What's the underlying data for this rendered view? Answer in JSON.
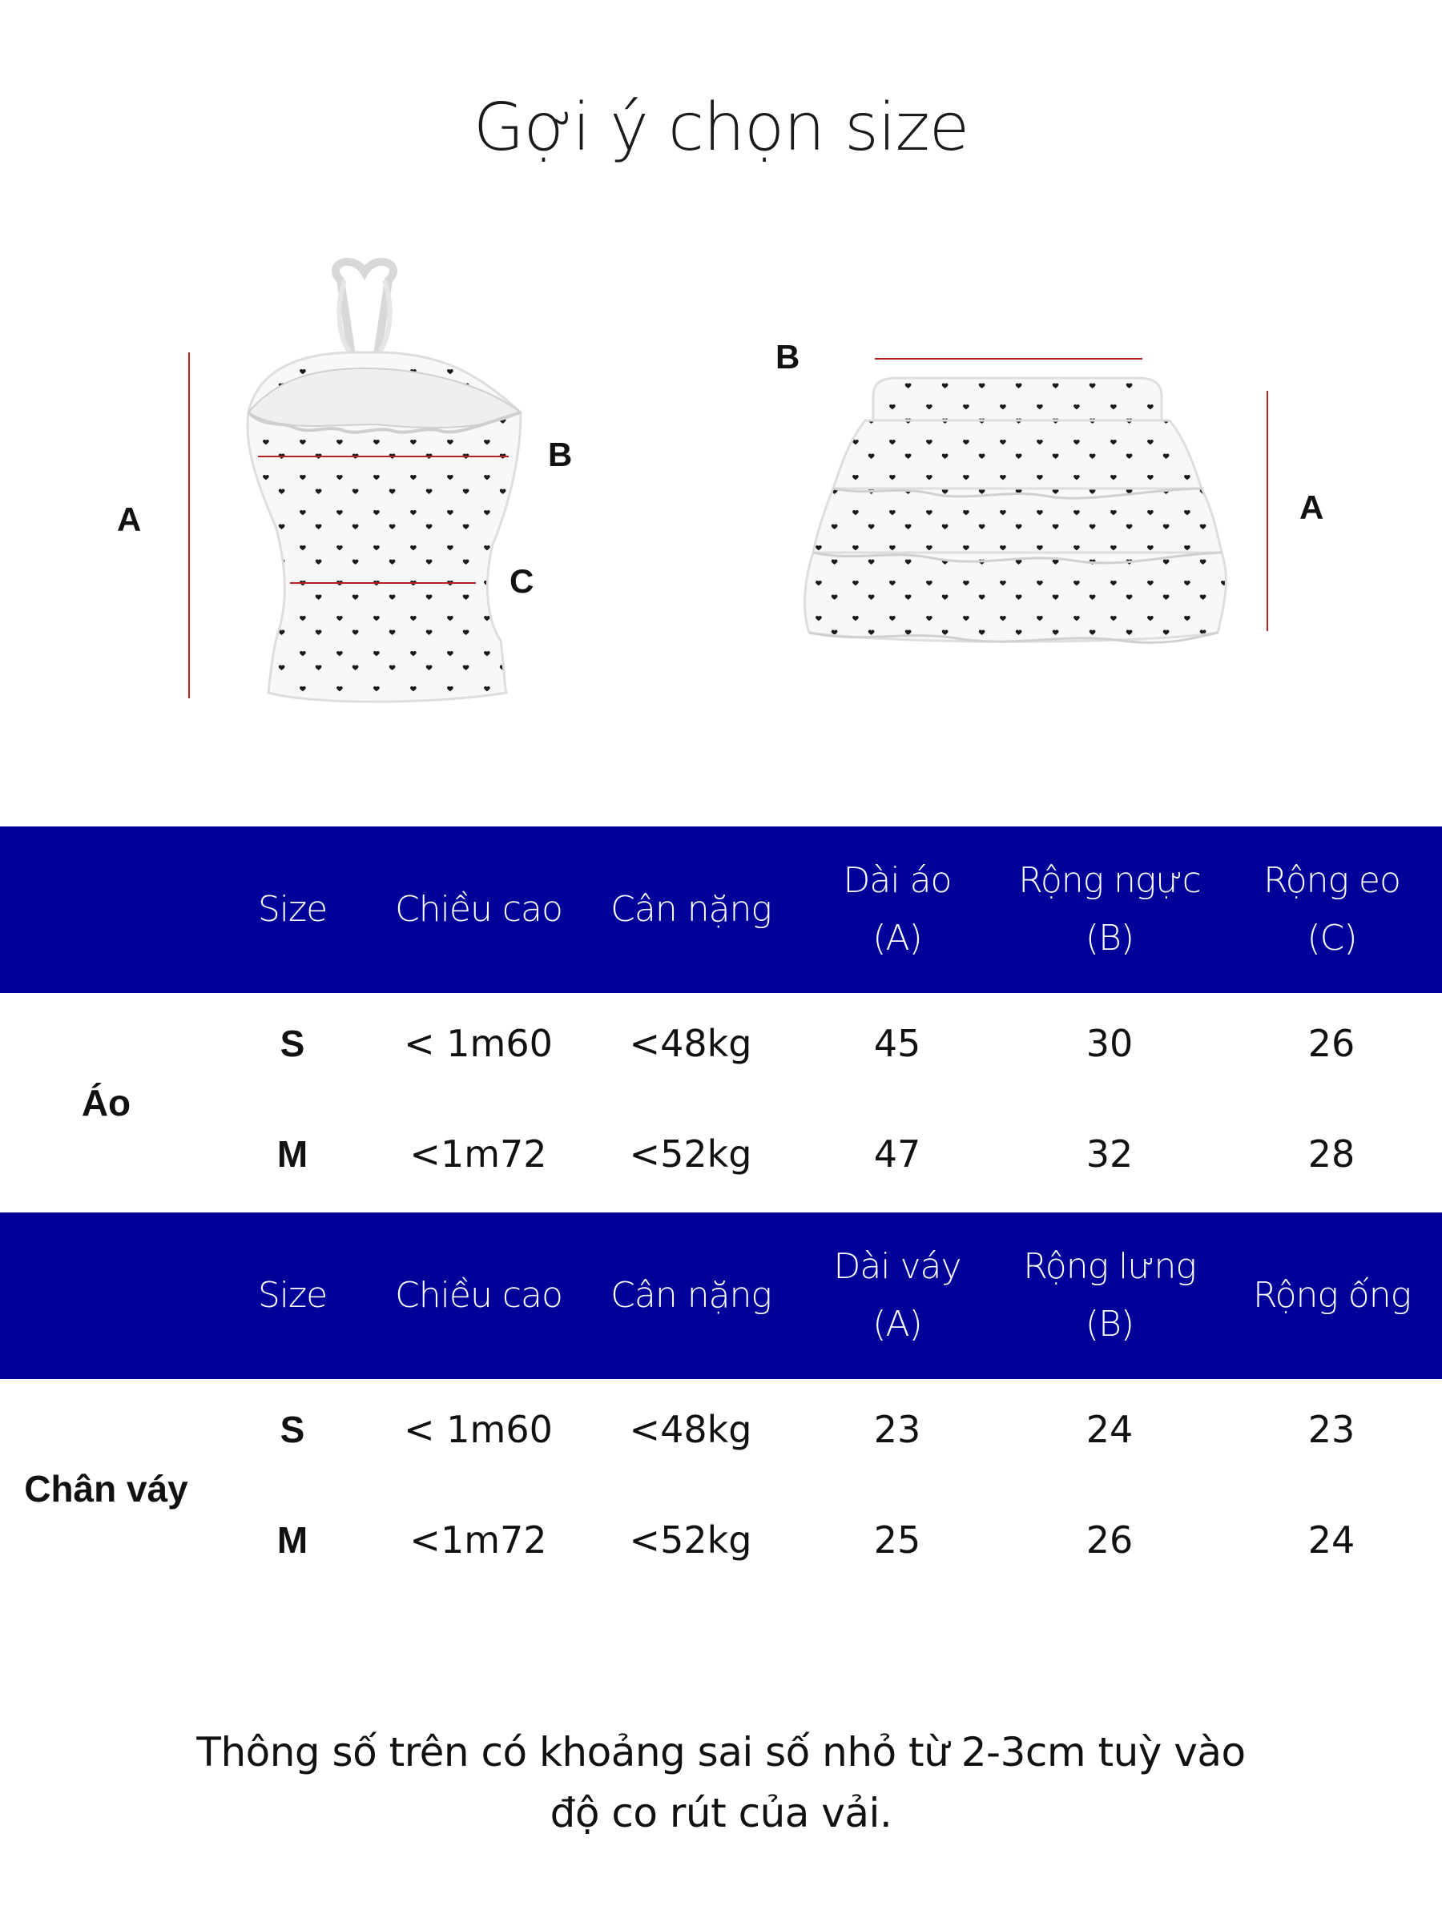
{
  "title": "Gợi ý chọn size",
  "diagram": {
    "top_labels": {
      "a": "A",
      "b": "B",
      "c": "C"
    },
    "skirt_labels": {
      "b": "B",
      "a": "A"
    },
    "colors": {
      "measure_line": "#b22222",
      "heart": "#1a1a1a",
      "fabric": "#f7f7f7"
    }
  },
  "top_table": {
    "group_label": "Áo",
    "headers": [
      {
        "line1": "Size",
        "line2": ""
      },
      {
        "line1": "Chiều cao",
        "line2": ""
      },
      {
        "line1": "Cân nặng",
        "line2": ""
      },
      {
        "line1": "Dài áo",
        "line2": "(A)"
      },
      {
        "line1": "Rộng ngực",
        "line2": "(B)"
      },
      {
        "line1": "Rộng eo",
        "line2": "(C)"
      }
    ],
    "rows": [
      {
        "size": "S",
        "height": "< 1m60",
        "weight": "<48kg",
        "a": "45",
        "b": "30",
        "c": "26"
      },
      {
        "size": "M",
        "height": "<1m72",
        "weight": "<52kg",
        "a": "47",
        "b": "32",
        "c": "28"
      }
    ]
  },
  "skirt_table": {
    "group_label": "Chân váy",
    "headers": [
      {
        "line1": "Size",
        "line2": ""
      },
      {
        "line1": "Chiều cao",
        "line2": ""
      },
      {
        "line1": "Cân nặng",
        "line2": ""
      },
      {
        "line1": "Dài váy",
        "line2": "(A)"
      },
      {
        "line1": "Rộng lưng",
        "line2": "(B)"
      },
      {
        "line1": "Rộng ống",
        "line2": ""
      }
    ],
    "rows": [
      {
        "size": "S",
        "height": "< 1m60",
        "weight": "<48kg",
        "a": "23",
        "b": "24",
        "c": "23"
      },
      {
        "size": "M",
        "height": "<1m72",
        "weight": "<52kg",
        "a": "25",
        "b": "26",
        "c": "24"
      }
    ]
  },
  "note": {
    "line1": "Thông số trên có khoảng sai số nhỏ từ 2-3cm tuỳ vào",
    "line2": "độ co rút của vải."
  },
  "colors": {
    "header_band": "#000099",
    "header_text": "#ffffff"
  }
}
